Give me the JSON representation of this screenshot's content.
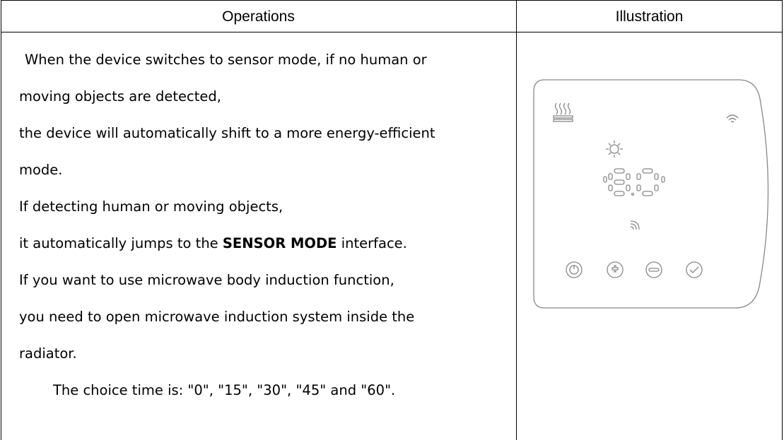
{
  "table": {
    "header": [
      "Operations",
      "Illustration"
    ],
    "lines": [
      "When the device switches to sensor mode, if no human or",
      "moving objects are detected,",
      "the device will automatically shift to a more energy-efficient",
      "mode.",
      "If detecting human or moving objects,",
      {
        "before": "it automatically jumps to the ",
        "bold": "SENSOR MODE",
        "after": " interface."
      },
      "If you want to use microwave body induction function,",
      "you need to open microwave induction system inside the",
      "radiator.",
      "The choice time is: \"0\", \"15\", \"30\", \"45\" and \"60\"."
    ]
  }
}
